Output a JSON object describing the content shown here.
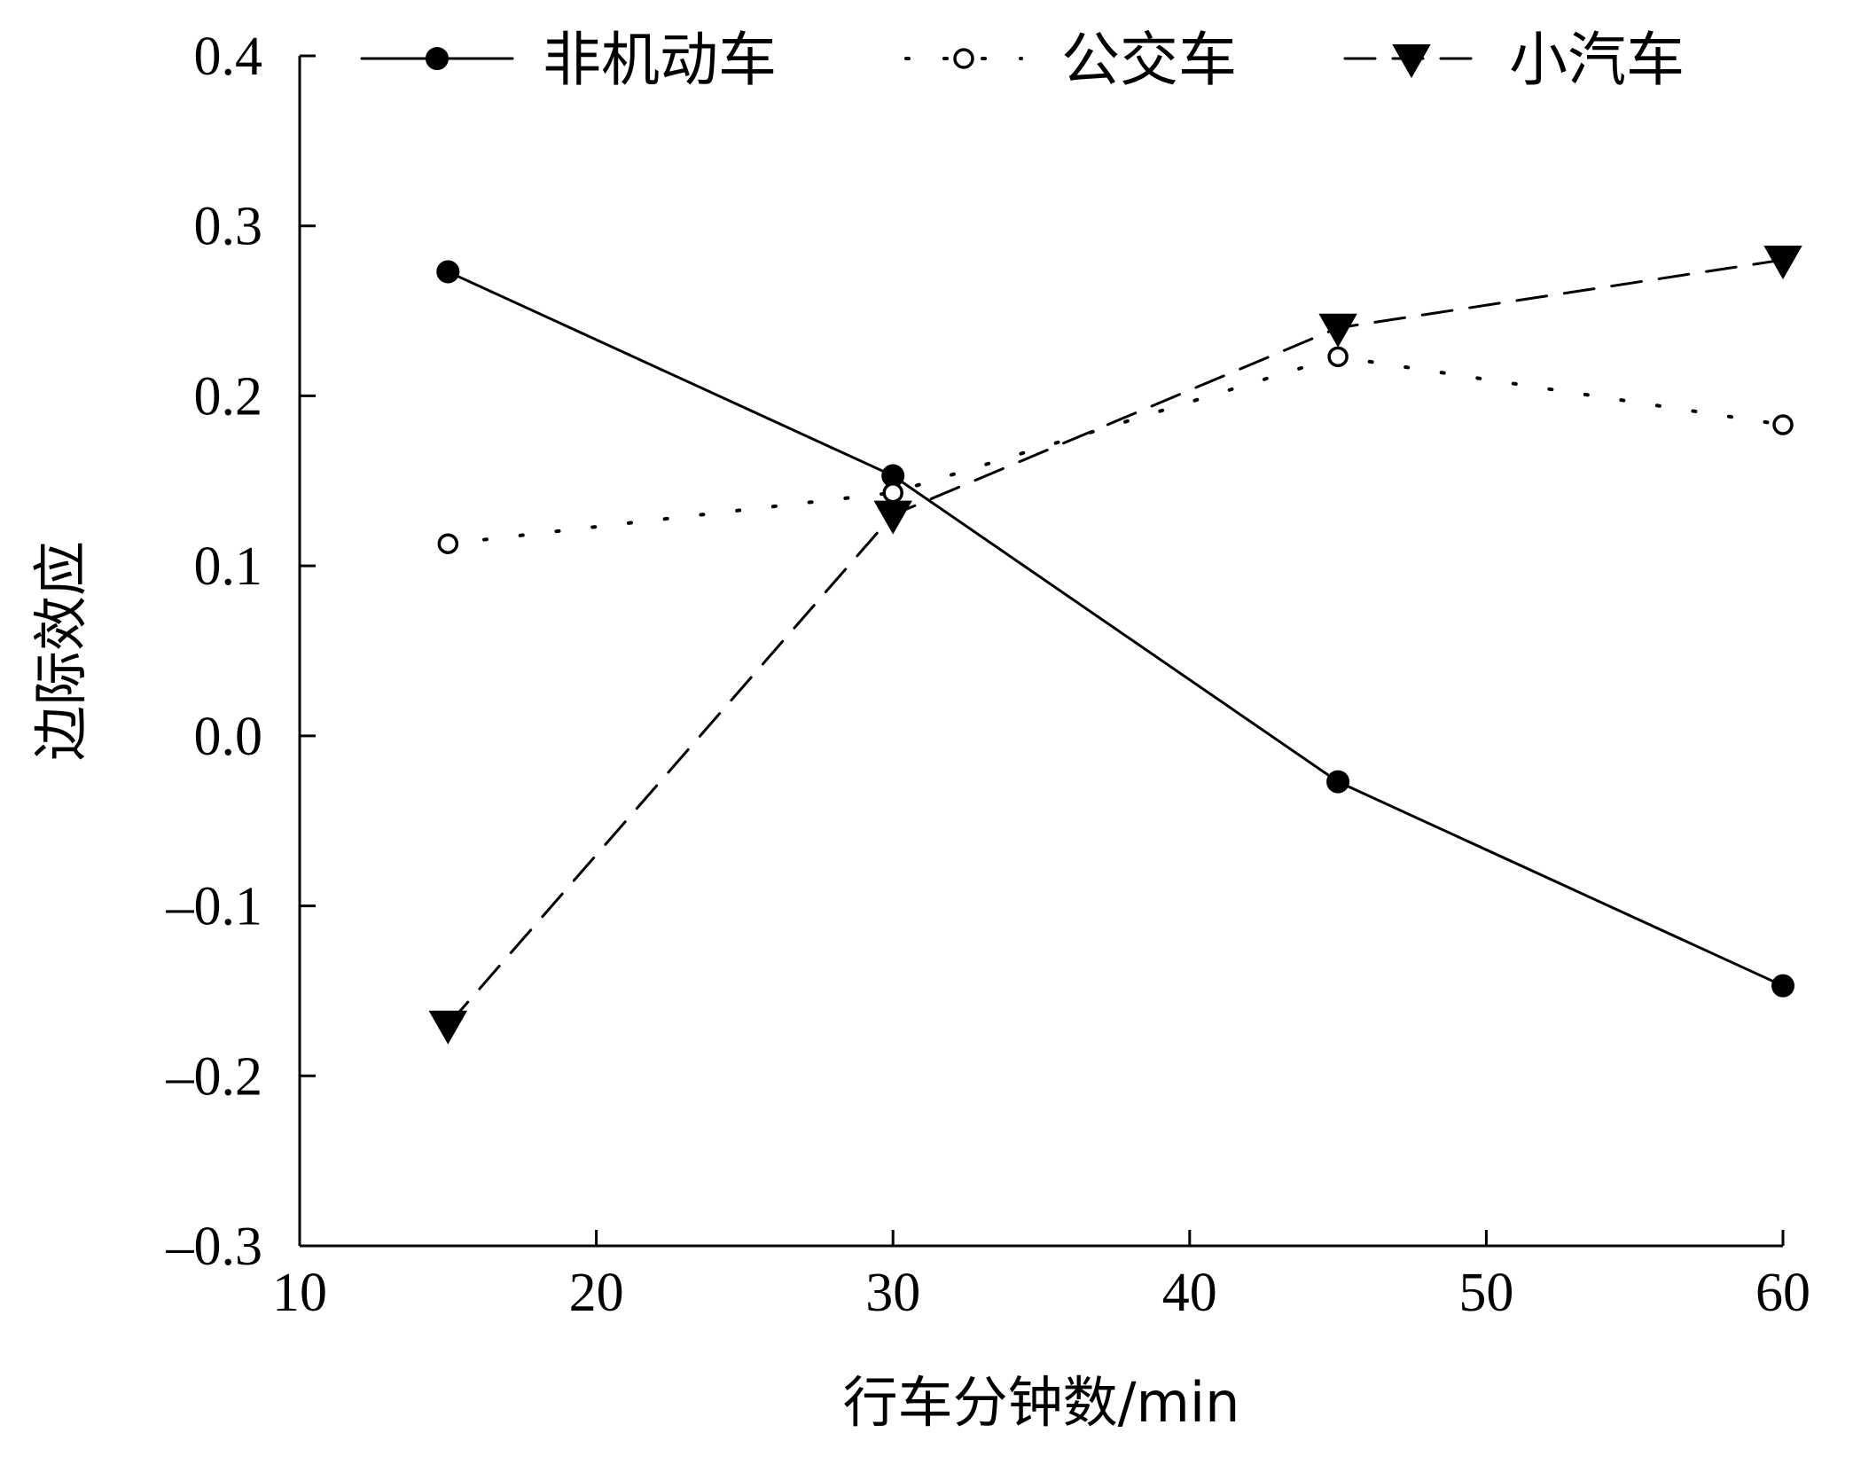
{
  "chart_data": {
    "type": "line",
    "title": "",
    "xlabel": "行车分钟数/min",
    "ylabel": "边际效应",
    "xlim": [
      10,
      60
    ],
    "ylim": [
      -0.3,
      0.4
    ],
    "x_ticks": [
      10,
      20,
      30,
      40,
      50,
      60
    ],
    "y_ticks": [
      0.4,
      0.3,
      0.2,
      0.1,
      0.0,
      -0.1,
      -0.2,
      -0.3
    ],
    "y_tick_labels": [
      "0.4",
      "0.3",
      "0.2",
      "0.1",
      "0.0",
      "–0.1",
      "–0.2",
      "–0.3"
    ],
    "x_tick_labels": [
      "10",
      "20",
      "30",
      "40",
      "50",
      "60"
    ],
    "grid": false,
    "legend_position": "top",
    "series": [
      {
        "name": "非机动车",
        "line_style": "solid",
        "marker": "filled-circle",
        "x": [
          15,
          30,
          45,
          60
        ],
        "values": [
          0.273,
          0.153,
          -0.027,
          -0.147
        ]
      },
      {
        "name": "公交车",
        "line_style": "dotted",
        "marker": "open-circle",
        "x": [
          15,
          30,
          45,
          60
        ],
        "values": [
          0.113,
          0.143,
          0.223,
          0.183
        ]
      },
      {
        "name": "小汽车",
        "line_style": "dashed",
        "marker": "filled-triangle-down",
        "x": [
          15,
          30,
          45,
          60
        ],
        "values": [
          -0.17,
          0.13,
          0.24,
          0.28
        ]
      }
    ]
  }
}
